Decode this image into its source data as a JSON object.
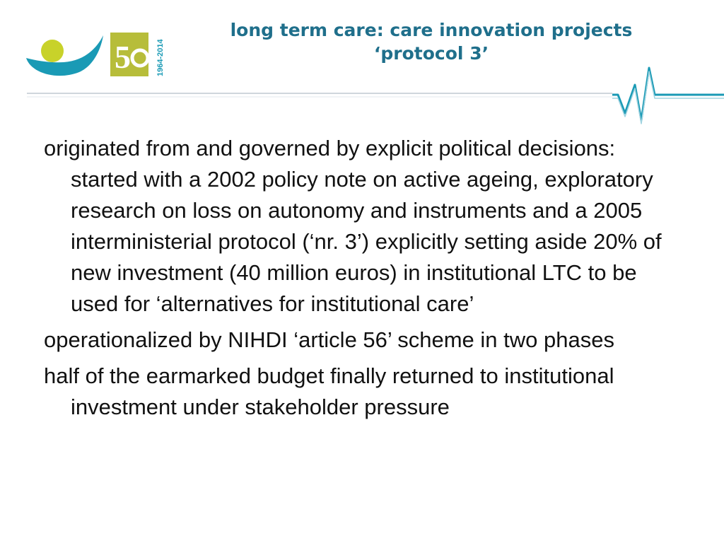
{
  "slide": {
    "title_line1": "long term care: care innovation projects",
    "title_line2": "‘protocol 3’",
    "logo_years": "1964-2014",
    "bullets": [
      "originated from and governed by explicit political decisions: started with a 2002 policy note on active ageing, exploratory research on loss on autonomy and instruments and a 2005 interministerial protocol (‘nr. 3’) explicitly setting aside 20% of new investment (40 million euros)  in institutional LTC to be used for ‘alternatives for institutional care’",
      "operationalized by NIHDI ‘article 56’ scheme in two phases",
      "half of the earmarked budget finally returned to institutional investment under stakeholder pressure"
    ]
  },
  "colors": {
    "title": "#1f6f8b",
    "logo_teal": "#1a9ab5",
    "logo_lime": "#c8d22a",
    "logo_olive": "#b7bd3a",
    "divider": "#cfd6dc",
    "pulse": "#1a9ab5"
  }
}
